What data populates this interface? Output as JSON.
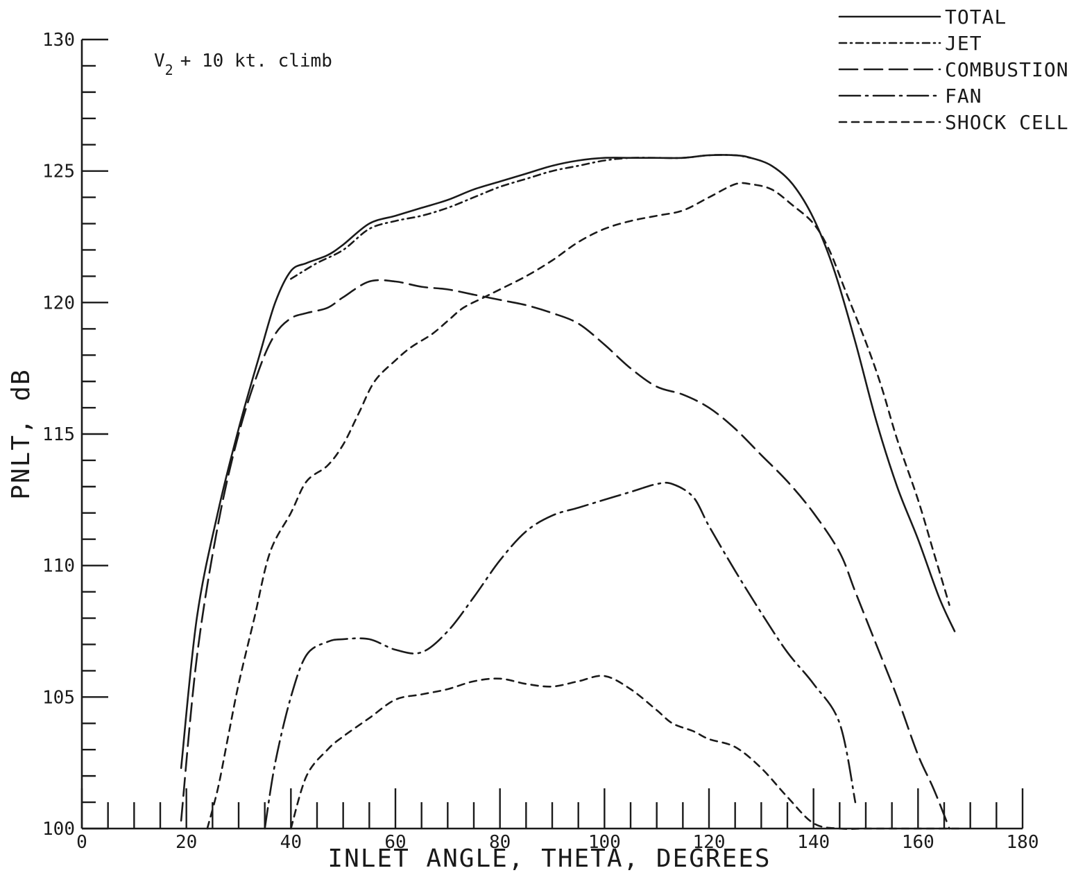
{
  "chart_data": {
    "type": "line",
    "annotation": "V2 + 10 kt. climb",
    "xlabel": "INLET ANGLE, THETA, DEGREES",
    "ylabel": "PNLT, dB",
    "xlim": [
      0,
      180
    ],
    "ylim": [
      100,
      130
    ],
    "xticks": [
      0,
      20,
      40,
      60,
      80,
      100,
      120,
      140,
      160,
      180
    ],
    "yticks": [
      100,
      105,
      110,
      115,
      120,
      125,
      130
    ],
    "grid": false,
    "legend_position": "top-right",
    "series": [
      {
        "name": "TOTAL",
        "dash": "solid",
        "x": [
          19,
          22,
          26,
          30,
          34,
          37,
          40,
          43,
          47,
          50,
          55,
          60,
          65,
          70,
          75,
          80,
          85,
          90,
          95,
          100,
          105,
          110,
          115,
          120,
          125,
          128,
          132,
          136,
          140,
          144,
          148,
          152,
          156,
          160,
          164,
          167
        ],
        "y": [
          102.3,
          108,
          112,
          115.2,
          118,
          120,
          121.2,
          121.5,
          121.8,
          122.2,
          123,
          123.3,
          123.6,
          123.9,
          124.3,
          124.6,
          124.9,
          125.2,
          125.4,
          125.5,
          125.5,
          125.5,
          125.5,
          125.6,
          125.6,
          125.5,
          125.2,
          124.5,
          123.2,
          121.2,
          118.5,
          115.5,
          113,
          111,
          108.8,
          107.5
        ]
      },
      {
        "name": "JET",
        "dash": "dash-dot",
        "x": [
          40,
          45,
          50,
          55,
          60,
          65,
          70,
          75,
          80,
          85,
          90,
          95,
          100,
          105,
          110,
          115,
          120,
          125,
          128
        ],
        "y": [
          120.9,
          121.5,
          122,
          122.8,
          123.1,
          123.3,
          123.6,
          124,
          124.4,
          124.7,
          125,
          125.2,
          125.4,
          125.5,
          125.5,
          125.5,
          125.6,
          125.6,
          125.5
        ]
      },
      {
        "name": "COMBUSTION",
        "dash": "long-dash",
        "x": [
          19,
          22,
          26,
          30,
          34,
          37,
          40,
          43,
          47,
          50,
          55,
          60,
          65,
          70,
          75,
          80,
          85,
          90,
          95,
          100,
          105,
          110,
          115,
          120,
          125,
          130,
          135,
          140,
          145,
          148,
          152,
          156,
          160,
          163,
          166
        ],
        "y": [
          100.3,
          106.5,
          111.5,
          115,
          117.5,
          118.8,
          119.4,
          119.6,
          119.8,
          120.2,
          120.8,
          120.8,
          120.6,
          120.5,
          120.3,
          120.1,
          119.9,
          119.6,
          119.2,
          118.4,
          117.5,
          116.8,
          116.5,
          116,
          115.2,
          114.2,
          113.2,
          112,
          110.5,
          109,
          107,
          105,
          102.8,
          101.5,
          100
        ]
      },
      {
        "name": "FAN",
        "dash": "dash-dash-dot",
        "x": [
          35,
          37,
          40,
          43,
          47,
          50,
          55,
          60,
          65,
          70,
          75,
          80,
          85,
          90,
          95,
          100,
          105,
          110,
          113,
          117,
          120,
          125,
          130,
          135,
          140,
          145,
          148
        ],
        "y": [
          100,
          102.5,
          105,
          106.6,
          107.1,
          107.2,
          107.2,
          106.8,
          106.7,
          107.5,
          108.8,
          110.2,
          111.3,
          111.9,
          112.2,
          112.5,
          112.8,
          113.1,
          113.1,
          112.6,
          111.5,
          109.8,
          108.2,
          106.7,
          105.5,
          104,
          101
        ]
      },
      {
        "name": "SHOCK CELL",
        "dash": "short-dash",
        "x": [
          40,
          43,
          47,
          50,
          55,
          60,
          65,
          70,
          75,
          80,
          85,
          90,
          95,
          100,
          105,
          110,
          113,
          117,
          120,
          125,
          130,
          135,
          140,
          145,
          150,
          155,
          160,
          165,
          168
        ],
        "y": [
          100,
          102,
          103,
          103.5,
          104.2,
          104.9,
          105.1,
          105.3,
          105.6,
          105.7,
          105.5,
          105.4,
          105.6,
          105.8,
          105.3,
          104.5,
          104,
          103.7,
          103.4,
          103.1,
          102.3,
          101.2,
          100.2,
          100,
          100,
          100,
          100,
          100,
          100
        ]
      },
      {
        "name": "",
        "dash": "short-dash",
        "x": [
          24,
          26,
          28,
          30,
          33,
          36,
          40,
          43,
          47,
          50,
          53,
          56,
          60,
          63,
          67,
          70,
          73,
          77,
          80,
          85,
          90,
          95,
          100,
          105,
          110,
          115,
          120,
          125,
          128,
          132,
          136,
          140,
          143,
          146,
          150,
          153,
          156,
          160,
          163,
          166
        ],
        "y": [
          100,
          101.5,
          103.5,
          105.5,
          108,
          110.5,
          112,
          113.2,
          113.8,
          114.6,
          115.8,
          117,
          117.8,
          118.3,
          118.8,
          119.3,
          119.8,
          120.2,
          120.5,
          121,
          121.6,
          122.3,
          122.8,
          123.1,
          123.3,
          123.5,
          124,
          124.5,
          124.5,
          124.3,
          123.7,
          123,
          122,
          120.5,
          118.5,
          116.8,
          114.8,
          112.5,
          110.5,
          108.5
        ]
      }
    ]
  },
  "legend": [
    {
      "label": "TOTAL",
      "dash": "solid"
    },
    {
      "label": "JET",
      "dash": "dash-dot"
    },
    {
      "label": "COMBUSTION",
      "dash": "long-dash"
    },
    {
      "label": "FAN",
      "dash": "dash-dash-dot"
    },
    {
      "label": "SHOCK CELL",
      "dash": "short-dash"
    }
  ],
  "annotation_parts": {
    "v": "V",
    "sub": "2",
    "rest": "+ 10 kt. climb"
  }
}
